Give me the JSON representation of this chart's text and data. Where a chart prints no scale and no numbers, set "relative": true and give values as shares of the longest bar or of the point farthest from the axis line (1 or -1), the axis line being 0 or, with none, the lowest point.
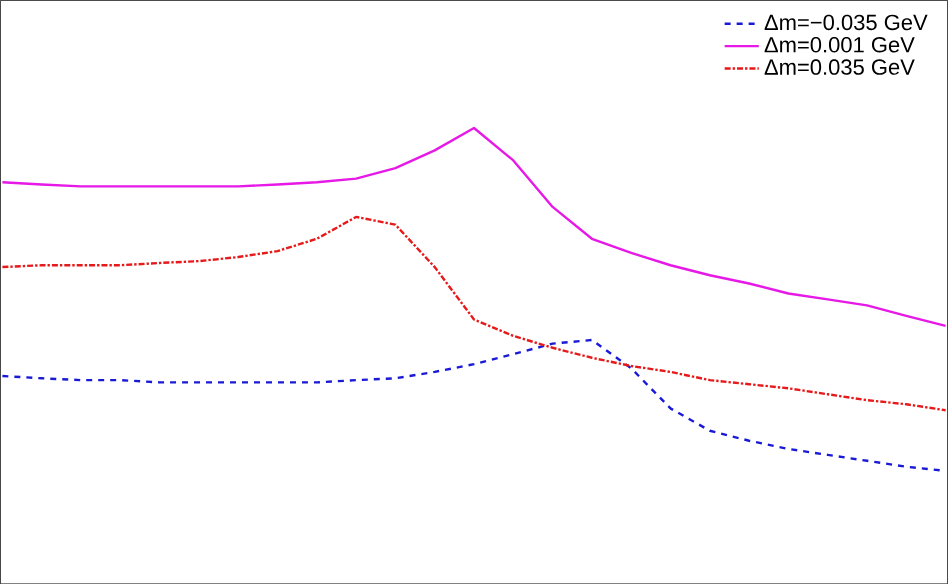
{
  "chart_data": {
    "type": "line",
    "relative": true,
    "legend": "top right",
    "marker": "none",
    "categories": [
      null,
      null,
      null,
      null,
      null,
      null,
      null,
      null,
      null,
      null,
      null,
      null,
      null,
      null,
      null,
      null,
      null,
      null,
      null,
      null,
      null,
      null,
      null,
      null,
      null
    ],
    "series": [
      {
        "name": "Δm=−0.035 GeV",
        "color": "#1a1ad6",
        "line_style": "dashed",
        "values": [
          0.456,
          0.451,
          0.447,
          0.447,
          0.442,
          0.442,
          0.442,
          0.442,
          0.442,
          0.447,
          0.451,
          0.465,
          0.482,
          0.504,
          0.527,
          0.535,
          0.473,
          0.385,
          0.336,
          0.314,
          0.296,
          0.283,
          0.27,
          0.257,
          0.248
        ]
      },
      {
        "name": "Δm=0.001 GeV",
        "color": "#e619e6",
        "line_style": "solid",
        "values": [
          0.881,
          0.876,
          0.872,
          0.872,
          0.872,
          0.872,
          0.872,
          0.876,
          0.881,
          0.889,
          0.912,
          0.951,
          1,
          0.929,
          0.827,
          0.757,
          0.726,
          0.699,
          0.677,
          0.659,
          0.637,
          0.624,
          0.611,
          0.588,
          0.566
        ]
      },
      {
        "name": "Δm=0.035 GeV",
        "color": "#e61a1a",
        "line_style": "dashdot",
        "values": [
          0.695,
          0.699,
          0.699,
          0.699,
          0.704,
          0.708,
          0.717,
          0.73,
          0.757,
          0.805,
          0.788,
          0.695,
          0.58,
          0.544,
          0.518,
          0.496,
          0.478,
          0.465,
          0.447,
          0.438,
          0.429,
          0.416,
          0.403,
          0.394,
          0.381
        ]
      }
    ]
  }
}
